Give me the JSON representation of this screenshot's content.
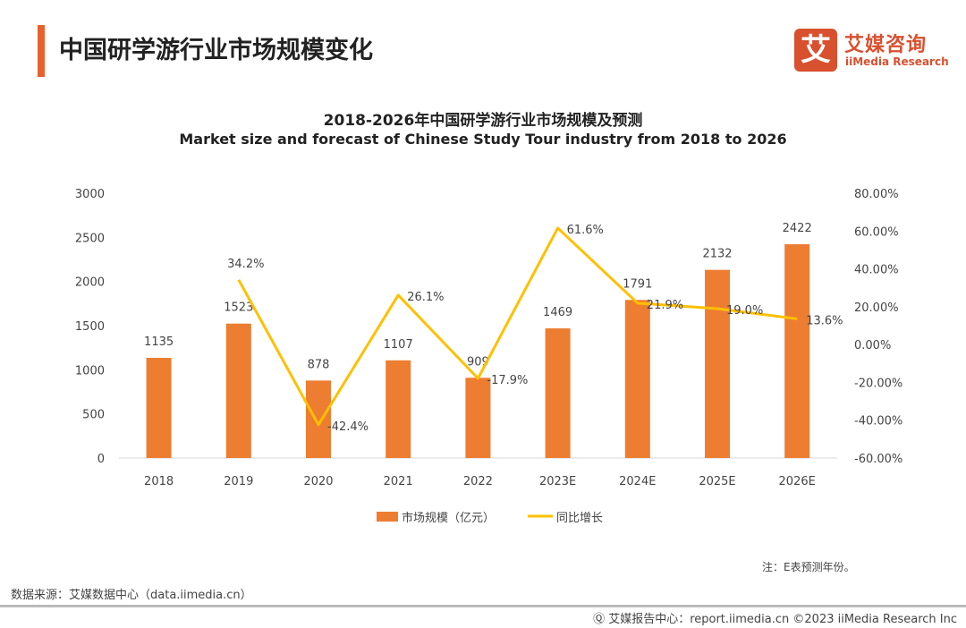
{
  "header": {
    "title": "中国研学游行业市场规模变化"
  },
  "logo": {
    "mark": "艾",
    "cn": "艾媒咨询",
    "en": "iiMedia Research"
  },
  "chart_data": {
    "type": "bar+line",
    "title": "2018-2026年中国研学游行业市场规模及预测",
    "subtitle": "Market size and forecast of Chinese Study Tour industry from 2018 to 2026",
    "categories": [
      "2018",
      "2019",
      "2020",
      "2021",
      "2022",
      "2023E",
      "2024E",
      "2025E",
      "2026E"
    ],
    "series": [
      {
        "name": "市场规模（亿元）",
        "type": "bar",
        "axis": "left",
        "color": "#ed7d31",
        "values": [
          1135,
          1523,
          878,
          1107,
          909,
          1469,
          1791,
          2132,
          2422
        ]
      },
      {
        "name": "同比增长",
        "type": "line",
        "axis": "right",
        "color": "#ffc000",
        "values": [
          null,
          34.2,
          -42.4,
          26.1,
          -17.9,
          61.6,
          21.9,
          19.0,
          13.6
        ],
        "labels": [
          "",
          "34.2%",
          "-42.4%",
          "26.1%",
          "-17.9%",
          "61.6%",
          "21.9%",
          "19.0%",
          "13.6%"
        ]
      }
    ],
    "y_left": {
      "range": [
        0,
        3000
      ],
      "ticks": [
        "0",
        "500",
        "1000",
        "1500",
        "2000",
        "2500",
        "3000"
      ]
    },
    "y_right": {
      "range": [
        -60,
        80
      ],
      "ticks": [
        "-60.00%",
        "-40.00%",
        "-20.00%",
        "0.00%",
        "20.00%",
        "40.00%",
        "60.00%",
        "80.00%"
      ]
    },
    "grid": false,
    "legend": "bottom"
  },
  "note": "注：E表预测年份。",
  "source": "数据来源：艾媒数据中心（data.iimedia.cn）",
  "footer": "Ⓠ 艾媒报告中心：report.iimedia.cn  ©2023  iiMedia Research Inc"
}
